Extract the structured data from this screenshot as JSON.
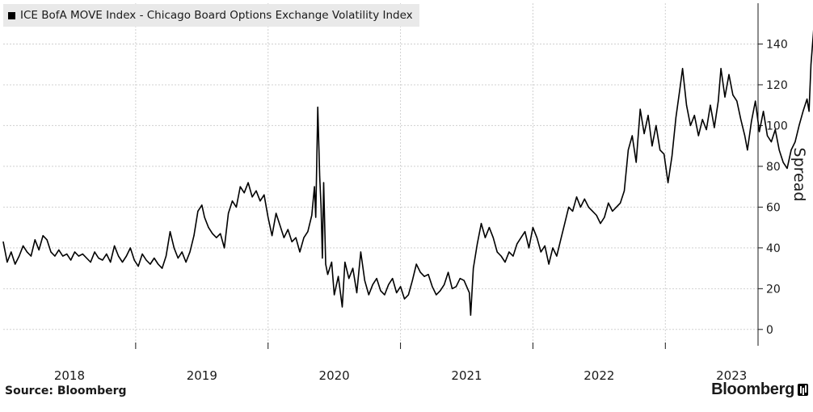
{
  "legend": {
    "label": "ICE BofA MOVE Index - Chicago Board Options Exchange Volatility Index",
    "color": "#000000"
  },
  "footer": {
    "source": "Source: Bloomberg",
    "brand": "Bloomberg"
  },
  "chart_data": {
    "type": "line",
    "title": "",
    "ylabel": "Spread",
    "ylim": [
      -8,
      160
    ],
    "yticks": [
      0,
      20,
      40,
      60,
      80,
      100,
      120,
      140
    ],
    "xlim": [
      2017.5,
      2023.2
    ],
    "xticks": [
      {
        "label": "2018",
        "x": 2018.0
      },
      {
        "label": "2019",
        "x": 2019.0
      },
      {
        "label": "2020",
        "x": 2020.0
      },
      {
        "label": "2021",
        "x": 2021.0
      },
      {
        "label": "2022",
        "x": 2022.0
      },
      {
        "label": "2023",
        "x": 2023.0
      }
    ],
    "gridlines": true,
    "series": [
      {
        "name": "ICE BofA MOVE Index - Chicago Board Options Exchange Volatility Index",
        "color": "#000000",
        "points": [
          [
            2017.5,
            43
          ],
          [
            2017.53,
            33
          ],
          [
            2017.56,
            38
          ],
          [
            2017.59,
            32
          ],
          [
            2017.62,
            36
          ],
          [
            2017.65,
            41
          ],
          [
            2017.68,
            38
          ],
          [
            2017.71,
            36
          ],
          [
            2017.74,
            44
          ],
          [
            2017.77,
            39
          ],
          [
            2017.8,
            46
          ],
          [
            2017.83,
            44
          ],
          [
            2017.86,
            38
          ],
          [
            2017.89,
            36
          ],
          [
            2017.92,
            39
          ],
          [
            2017.95,
            36
          ],
          [
            2017.98,
            37
          ],
          [
            2018.01,
            34
          ],
          [
            2018.04,
            38
          ],
          [
            2018.07,
            36
          ],
          [
            2018.1,
            37
          ],
          [
            2018.13,
            35
          ],
          [
            2018.16,
            33
          ],
          [
            2018.19,
            38
          ],
          [
            2018.22,
            35
          ],
          [
            2018.25,
            34
          ],
          [
            2018.28,
            37
          ],
          [
            2018.31,
            33
          ],
          [
            2018.34,
            41
          ],
          [
            2018.37,
            36
          ],
          [
            2018.4,
            33
          ],
          [
            2018.43,
            36
          ],
          [
            2018.46,
            40
          ],
          [
            2018.49,
            34
          ],
          [
            2018.52,
            31
          ],
          [
            2018.55,
            37
          ],
          [
            2018.58,
            34
          ],
          [
            2018.61,
            32
          ],
          [
            2018.64,
            35
          ],
          [
            2018.67,
            32
          ],
          [
            2018.7,
            30
          ],
          [
            2018.73,
            36
          ],
          [
            2018.76,
            48
          ],
          [
            2018.79,
            40
          ],
          [
            2018.82,
            35
          ],
          [
            2018.85,
            38
          ],
          [
            2018.88,
            33
          ],
          [
            2018.91,
            38
          ],
          [
            2018.94,
            46
          ],
          [
            2018.97,
            58
          ],
          [
            2019.0,
            61
          ],
          [
            2019.02,
            55
          ],
          [
            2019.05,
            50
          ],
          [
            2019.08,
            47
          ],
          [
            2019.11,
            45
          ],
          [
            2019.14,
            47
          ],
          [
            2019.17,
            40
          ],
          [
            2019.2,
            57
          ],
          [
            2019.23,
            63
          ],
          [
            2019.26,
            60
          ],
          [
            2019.29,
            70
          ],
          [
            2019.32,
            67
          ],
          [
            2019.35,
            72
          ],
          [
            2019.38,
            65
          ],
          [
            2019.41,
            68
          ],
          [
            2019.44,
            63
          ],
          [
            2019.47,
            66
          ],
          [
            2019.5,
            55
          ],
          [
            2019.53,
            46
          ],
          [
            2019.56,
            57
          ],
          [
            2019.59,
            51
          ],
          [
            2019.62,
            45
          ],
          [
            2019.65,
            49
          ],
          [
            2019.68,
            43
          ],
          [
            2019.71,
            45
          ],
          [
            2019.74,
            38
          ],
          [
            2019.77,
            45
          ],
          [
            2019.8,
            48
          ],
          [
            2019.83,
            56
          ],
          [
            2019.85,
            70
          ],
          [
            2019.86,
            55
          ],
          [
            2019.875,
            109
          ],
          [
            2019.89,
            75
          ],
          [
            2019.9,
            60
          ],
          [
            2019.91,
            35
          ],
          [
            2019.92,
            72
          ],
          [
            2019.935,
            32
          ],
          [
            2019.95,
            27
          ],
          [
            2019.98,
            33
          ],
          [
            2020.0,
            17
          ],
          [
            2020.03,
            26
          ],
          [
            2020.06,
            11
          ],
          [
            2020.08,
            33
          ],
          [
            2020.11,
            25
          ],
          [
            2020.14,
            30
          ],
          [
            2020.17,
            18
          ],
          [
            2020.2,
            38
          ],
          [
            2020.23,
            24
          ],
          [
            2020.26,
            17
          ],
          [
            2020.29,
            22
          ],
          [
            2020.32,
            25
          ],
          [
            2020.35,
            19
          ],
          [
            2020.38,
            17
          ],
          [
            2020.41,
            22
          ],
          [
            2020.44,
            25
          ],
          [
            2020.47,
            18
          ],
          [
            2020.5,
            21
          ],
          [
            2020.53,
            15
          ],
          [
            2020.56,
            17
          ],
          [
            2020.59,
            24
          ],
          [
            2020.62,
            32
          ],
          [
            2020.65,
            28
          ],
          [
            2020.68,
            26
          ],
          [
            2020.71,
            27
          ],
          [
            2020.74,
            21
          ],
          [
            2020.77,
            17
          ],
          [
            2020.8,
            19
          ],
          [
            2020.83,
            22
          ],
          [
            2020.86,
            28
          ],
          [
            2020.89,
            20
          ],
          [
            2020.92,
            21
          ],
          [
            2020.95,
            25
          ],
          [
            2020.98,
            24
          ],
          [
            2021.02,
            18
          ],
          [
            2021.03,
            7
          ],
          [
            2021.05,
            30
          ],
          [
            2021.08,
            42
          ],
          [
            2021.11,
            52
          ],
          [
            2021.14,
            45
          ],
          [
            2021.17,
            50
          ],
          [
            2021.2,
            45
          ],
          [
            2021.23,
            38
          ],
          [
            2021.26,
            36
          ],
          [
            2021.29,
            33
          ],
          [
            2021.32,
            38
          ],
          [
            2021.35,
            36
          ],
          [
            2021.38,
            42
          ],
          [
            2021.41,
            45
          ],
          [
            2021.44,
            48
          ],
          [
            2021.47,
            40
          ],
          [
            2021.5,
            50
          ],
          [
            2021.53,
            45
          ],
          [
            2021.56,
            38
          ],
          [
            2021.59,
            41
          ],
          [
            2021.62,
            32
          ],
          [
            2021.65,
            40
          ],
          [
            2021.68,
            36
          ],
          [
            2021.71,
            44
          ],
          [
            2021.74,
            52
          ],
          [
            2021.77,
            60
          ],
          [
            2021.8,
            58
          ],
          [
            2021.83,
            65
          ],
          [
            2021.86,
            60
          ],
          [
            2021.89,
            64
          ],
          [
            2021.92,
            60
          ],
          [
            2021.95,
            58
          ],
          [
            2021.98,
            56
          ],
          [
            2022.01,
            52
          ],
          [
            2022.04,
            55
          ],
          [
            2022.07,
            62
          ],
          [
            2022.1,
            58
          ],
          [
            2022.13,
            60
          ],
          [
            2022.16,
            62
          ],
          [
            2022.19,
            68
          ],
          [
            2022.22,
            88
          ],
          [
            2022.25,
            95
          ],
          [
            2022.28,
            82
          ],
          [
            2022.31,
            108
          ],
          [
            2022.34,
            96
          ],
          [
            2022.37,
            105
          ],
          [
            2022.4,
            90
          ],
          [
            2022.43,
            100
          ],
          [
            2022.46,
            88
          ],
          [
            2022.49,
            86
          ],
          [
            2022.52,
            72
          ],
          [
            2022.55,
            85
          ],
          [
            2022.58,
            104
          ],
          [
            2022.61,
            118
          ],
          [
            2022.63,
            128
          ],
          [
            2022.66,
            110
          ],
          [
            2022.69,
            100
          ],
          [
            2022.72,
            105
          ],
          [
            2022.75,
            95
          ],
          [
            2022.78,
            103
          ],
          [
            2022.81,
            98
          ],
          [
            2022.84,
            110
          ],
          [
            2022.87,
            99
          ],
          [
            2022.9,
            112
          ],
          [
            2022.92,
            128
          ],
          [
            2022.95,
            114
          ],
          [
            2022.98,
            125
          ],
          [
            2023.01,
            115
          ],
          [
            2023.04,
            112
          ],
          [
            2023.07,
            103
          ],
          [
            2023.1,
            95
          ],
          [
            2023.12,
            88
          ],
          [
            2023.15,
            102
          ],
          [
            2023.18,
            112
          ],
          [
            2023.21,
            97
          ],
          [
            2023.24,
            107
          ],
          [
            2023.27,
            95
          ],
          [
            2023.3,
            92
          ],
          [
            2023.33,
            98
          ],
          [
            2023.36,
            88
          ],
          [
            2023.39,
            82
          ],
          [
            2023.42,
            79
          ],
          [
            2023.45,
            88
          ],
          [
            2023.48,
            92
          ],
          [
            2023.51,
            100
          ],
          [
            2023.54,
            107
          ],
          [
            2023.57,
            113
          ],
          [
            2023.585,
            107
          ],
          [
            2023.6,
            130
          ],
          [
            2023.62,
            147
          ],
          [
            2023.635,
            144
          ]
        ]
      }
    ]
  }
}
